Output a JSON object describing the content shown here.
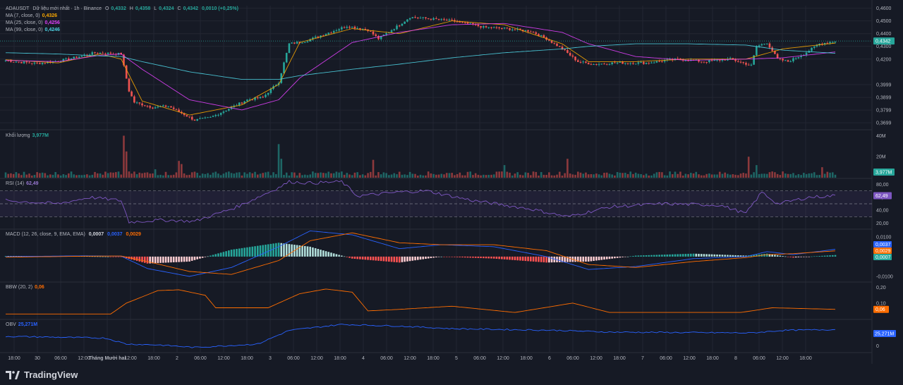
{
  "header": {
    "symbol": "ADAUSDT",
    "symbol_suffix": "Dữ liệu mới nhất · 1h · Binance",
    "o_label": "O",
    "o": "0,4332",
    "h_label": "H",
    "h": "0,4358",
    "l_label": "L",
    "l": "0,4324",
    "c_label": "C",
    "c": "0,4342",
    "change": "0,0010 (+0,25%)"
  },
  "ma": [
    {
      "label": "MA (7, close, 0)",
      "value": "0,4326",
      "color": "#f7a600"
    },
    {
      "label": "MA (25, close, 0)",
      "value": "0,4256",
      "color": "#e040fb"
    },
    {
      "label": "MA (99, close, 0)",
      "value": "0,4246",
      "color": "#4dd0e1"
    }
  ],
  "volume_label": "Khối lượng",
  "volume_value": "3,977M",
  "rsi_label": "RSI (14)",
  "rsi_value": "62,49",
  "macd_label": "MACD (12, 26, close, 9, EMA, EMA)",
  "macd_values": [
    "0,0007",
    "0,0037",
    "0,0029"
  ],
  "bbw_label": "BBW (20, 2)",
  "bbw_value": "0,06",
  "obv_label": "OBV",
  "obv_value": "25,271M",
  "price_axis": [
    "0,4600",
    "0,4500",
    "0,4400",
    "0,4300",
    "0,4200",
    "0,3999",
    "0,3899",
    "0,3799",
    "0,3699"
  ],
  "price_tag": "0,4342",
  "volume_axis": [
    "40M",
    "20M"
  ],
  "volume_tag": "3,977M",
  "rsi_axis": [
    "80,00",
    "60,00",
    "40,00",
    "20,00"
  ],
  "rsi_tag": "62,49",
  "macd_axis": [
    "0,0100",
    "-0,0100"
  ],
  "macd_tags": [
    "0,0037",
    "0,0029",
    "0,0007"
  ],
  "bbw_axis": [
    "0,20",
    "0,10"
  ],
  "bbw_tag": "0,06",
  "obv_axis": [
    "0"
  ],
  "obv_tag": "25,271M",
  "time_axis": [
    "18:00",
    "30",
    "06:00",
    "12:00",
    "Tháng Mười hai",
    "12:00",
    "18:00",
    "2",
    "06:00",
    "12:00",
    "18:00",
    "3",
    "06:00",
    "12:00",
    "18:00",
    "4",
    "06:00",
    "12:00",
    "18:00",
    "5",
    "06:00",
    "12:00",
    "18:00",
    "6",
    "06:00",
    "12:00",
    "18:00",
    "7",
    "06:00",
    "12:00",
    "18:00",
    "8",
    "06:00",
    "12:00",
    "18:00"
  ],
  "brand": "TradingView",
  "colors": {
    "up": "#26a69a",
    "down": "#ef5350",
    "rsi": "#7e57c2",
    "macd": "#2962ff",
    "signal": "#ff6d00",
    "bbw": "#ff6d00",
    "obv": "#2962ff"
  },
  "chart_data": {
    "type": "candlestick",
    "timeframe": "1h",
    "ylim": [
      0.365,
      0.462
    ],
    "ma_keys": [
      {
        "t": 0,
        "ma7": 0.4195,
        "ma25": 0.419,
        "ma99": 0.425
      },
      {
        "t": 20,
        "ma7": 0.417,
        "ma25": 0.418,
        "ma99": 0.424
      },
      {
        "t": 36,
        "ma7": 0.424,
        "ma25": 0.423,
        "ma99": 0.4225
      },
      {
        "t": 44,
        "ma7": 0.42,
        "ma25": 0.424,
        "ma99": 0.422
      },
      {
        "t": 52,
        "ma7": 0.387,
        "ma25": 0.412,
        "ma99": 0.418
      },
      {
        "t": 70,
        "ma7": 0.376,
        "ma25": 0.388,
        "ma99": 0.41
      },
      {
        "t": 90,
        "ma7": 0.384,
        "ma25": 0.38,
        "ma99": 0.404
      },
      {
        "t": 104,
        "ma7": 0.4,
        "ma25": 0.388,
        "ma99": 0.404
      },
      {
        "t": 112,
        "ma7": 0.433,
        "ma25": 0.405,
        "ma99": 0.407
      },
      {
        "t": 132,
        "ma7": 0.444,
        "ma25": 0.433,
        "ma99": 0.412
      },
      {
        "t": 150,
        "ma7": 0.44,
        "ma25": 0.441,
        "ma99": 0.416
      },
      {
        "t": 170,
        "ma7": 0.45,
        "ma25": 0.447,
        "ma99": 0.421
      },
      {
        "t": 190,
        "ma7": 0.447,
        "ma25": 0.448,
        "ma99": 0.425
      },
      {
        "t": 212,
        "ma7": 0.432,
        "ma25": 0.441,
        "ma99": 0.428
      },
      {
        "t": 222,
        "ma7": 0.418,
        "ma25": 0.432,
        "ma99": 0.43
      },
      {
        "t": 240,
        "ma7": 0.418,
        "ma25": 0.422,
        "ma99": 0.432
      },
      {
        "t": 260,
        "ma7": 0.42,
        "ma25": 0.419,
        "ma99": 0.432
      },
      {
        "t": 282,
        "ma7": 0.42,
        "ma25": 0.42,
        "ma99": 0.431
      },
      {
        "t": 296,
        "ma7": 0.428,
        "ma25": 0.421,
        "ma99": 0.427
      },
      {
        "t": 316,
        "ma7": 0.4326,
        "ma25": 0.4256,
        "ma99": 0.4246
      }
    ],
    "candles_ohlc": "generated_from_close_path",
    "close_path": [
      {
        "t": 0,
        "c": 0.419
      },
      {
        "t": 6,
        "c": 0.4175
      },
      {
        "t": 12,
        "c": 0.4165
      },
      {
        "t": 18,
        "c": 0.418
      },
      {
        "t": 24,
        "c": 0.42
      },
      {
        "t": 30,
        "c": 0.423
      },
      {
        "t": 34,
        "c": 0.425
      },
      {
        "t": 44,
        "c": 0.424
      },
      {
        "t": 47,
        "c": 0.395
      },
      {
        "t": 49,
        "c": 0.386
      },
      {
        "t": 56,
        "c": 0.382
      },
      {
        "t": 62,
        "c": 0.383
      },
      {
        "t": 72,
        "c": 0.372
      },
      {
        "t": 78,
        "c": 0.374
      },
      {
        "t": 84,
        "c": 0.38
      },
      {
        "t": 92,
        "c": 0.388
      },
      {
        "t": 98,
        "c": 0.39
      },
      {
        "t": 104,
        "c": 0.402
      },
      {
        "t": 108,
        "c": 0.432
      },
      {
        "t": 114,
        "c": 0.434
      },
      {
        "t": 122,
        "c": 0.44
      },
      {
        "t": 130,
        "c": 0.446
      },
      {
        "t": 138,
        "c": 0.443
      },
      {
        "t": 142,
        "c": 0.436
      },
      {
        "t": 150,
        "c": 0.447
      },
      {
        "t": 154,
        "c": 0.453
      },
      {
        "t": 160,
        "c": 0.452
      },
      {
        "t": 170,
        "c": 0.45
      },
      {
        "t": 178,
        "c": 0.447
      },
      {
        "t": 182,
        "c": 0.445
      },
      {
        "t": 190,
        "c": 0.444
      },
      {
        "t": 200,
        "c": 0.442
      },
      {
        "t": 206,
        "c": 0.436
      },
      {
        "t": 212,
        "c": 0.428
      },
      {
        "t": 218,
        "c": 0.418
      },
      {
        "t": 224,
        "c": 0.416
      },
      {
        "t": 232,
        "c": 0.417
      },
      {
        "t": 244,
        "c": 0.417
      },
      {
        "t": 256,
        "c": 0.42
      },
      {
        "t": 266,
        "c": 0.418
      },
      {
        "t": 276,
        "c": 0.42
      },
      {
        "t": 284,
        "c": 0.415
      },
      {
        "t": 286,
        "c": 0.43
      },
      {
        "t": 290,
        "c": 0.433
      },
      {
        "t": 294,
        "c": 0.42
      },
      {
        "t": 298,
        "c": 0.418
      },
      {
        "t": 304,
        "c": 0.424
      },
      {
        "t": 310,
        "c": 0.432
      },
      {
        "t": 316,
        "c": 0.4342
      }
    ],
    "volume_ylim": [
      0,
      45
    ],
    "volume_unit": "M",
    "volume_spikes": [
      {
        "t": 45,
        "v": 40
      },
      {
        "t": 46,
        "v": 25
      },
      {
        "t": 57,
        "v": 8
      },
      {
        "t": 66,
        "v": 16
      },
      {
        "t": 67,
        "v": 13
      },
      {
        "t": 104,
        "v": 32
      },
      {
        "t": 105,
        "v": 18
      },
      {
        "t": 140,
        "v": 17
      },
      {
        "t": 190,
        "v": 12
      },
      {
        "t": 214,
        "v": 18
      },
      {
        "t": 283,
        "v": 20
      },
      {
        "t": 286,
        "v": 12
      },
      {
        "t": 311,
        "v": 10
      }
    ],
    "rsi_ylim": [
      12,
      88
    ],
    "rsi_levels": [
      70,
      50,
      30
    ],
    "rsi_keys": [
      {
        "t": 0,
        "v": 55
      },
      {
        "t": 20,
        "v": 50
      },
      {
        "t": 32,
        "v": 60
      },
      {
        "t": 44,
        "v": 55
      },
      {
        "t": 47,
        "v": 22
      },
      {
        "t": 60,
        "v": 25
      },
      {
        "t": 72,
        "v": 23
      },
      {
        "t": 88,
        "v": 45
      },
      {
        "t": 104,
        "v": 75
      },
      {
        "t": 108,
        "v": 84
      },
      {
        "t": 116,
        "v": 82
      },
      {
        "t": 128,
        "v": 84
      },
      {
        "t": 134,
        "v": 62
      },
      {
        "t": 150,
        "v": 68
      },
      {
        "t": 160,
        "v": 70
      },
      {
        "t": 178,
        "v": 55
      },
      {
        "t": 200,
        "v": 42
      },
      {
        "t": 214,
        "v": 30
      },
      {
        "t": 230,
        "v": 45
      },
      {
        "t": 250,
        "v": 50
      },
      {
        "t": 272,
        "v": 48
      },
      {
        "t": 282,
        "v": 35
      },
      {
        "t": 288,
        "v": 68
      },
      {
        "t": 294,
        "v": 50
      },
      {
        "t": 306,
        "v": 60
      },
      {
        "t": 316,
        "v": 62.49
      }
    ],
    "macd_ylim": [
      -0.0125,
      0.0135
    ],
    "macd_keys": [
      {
        "t": 0,
        "m": 0.0,
        "s": -0.0003
      },
      {
        "t": 30,
        "m": 0.0004,
        "s": 0.0002
      },
      {
        "t": 44,
        "m": 0.0002,
        "s": 0.0003
      },
      {
        "t": 54,
        "m": -0.006,
        "s": -0.0025
      },
      {
        "t": 70,
        "m": -0.01,
        "s": -0.0075
      },
      {
        "t": 86,
        "m": -0.0055,
        "s": -0.009
      },
      {
        "t": 104,
        "m": 0.005,
        "s": -0.002
      },
      {
        "t": 116,
        "m": 0.013,
        "s": 0.008
      },
      {
        "t": 132,
        "m": 0.011,
        "s": 0.012
      },
      {
        "t": 150,
        "m": 0.004,
        "s": 0.007
      },
      {
        "t": 166,
        "m": 0.006,
        "s": 0.006
      },
      {
        "t": 186,
        "m": 0.005,
        "s": 0.006
      },
      {
        "t": 206,
        "m": 0.0,
        "s": 0.003
      },
      {
        "t": 222,
        "m": -0.0065,
        "s": -0.004
      },
      {
        "t": 240,
        "m": -0.005,
        "s": -0.0055
      },
      {
        "t": 262,
        "m": -0.001,
        "s": -0.0025
      },
      {
        "t": 282,
        "m": 0.0,
        "s": -0.0005
      },
      {
        "t": 290,
        "m": 0.0025,
        "s": 0.001
      },
      {
        "t": 300,
        "m": 0.001,
        "s": 0.0015
      },
      {
        "t": 316,
        "m": 0.0037,
        "s": 0.0029
      }
    ],
    "bbw_ylim": [
      0.0,
      0.23
    ],
    "bbw_keys": [
      {
        "t": 0,
        "v": 0.03
      },
      {
        "t": 40,
        "v": 0.03
      },
      {
        "t": 46,
        "v": 0.1
      },
      {
        "t": 58,
        "v": 0.18
      },
      {
        "t": 66,
        "v": 0.185
      },
      {
        "t": 76,
        "v": 0.15
      },
      {
        "t": 80,
        "v": 0.07
      },
      {
        "t": 100,
        "v": 0.07
      },
      {
        "t": 112,
        "v": 0.16
      },
      {
        "t": 122,
        "v": 0.19
      },
      {
        "t": 132,
        "v": 0.17
      },
      {
        "t": 138,
        "v": 0.05
      },
      {
        "t": 150,
        "v": 0.06
      },
      {
        "t": 170,
        "v": 0.08
      },
      {
        "t": 194,
        "v": 0.04
      },
      {
        "t": 216,
        "v": 0.1
      },
      {
        "t": 230,
        "v": 0.04
      },
      {
        "t": 280,
        "v": 0.04
      },
      {
        "t": 292,
        "v": 0.07
      },
      {
        "t": 316,
        "v": 0.06
      }
    ],
    "obv_keys": [
      {
        "t": 0,
        "v": 0.55
      },
      {
        "t": 38,
        "v": 0.45
      },
      {
        "t": 46,
        "v": 0.1
      },
      {
        "t": 58,
        "v": 0.05
      },
      {
        "t": 72,
        "v": -0.1
      },
      {
        "t": 96,
        "v": 0.1
      },
      {
        "t": 108,
        "v": 0.9
      },
      {
        "t": 128,
        "v": 1.25
      },
      {
        "t": 150,
        "v": 1.15
      },
      {
        "t": 170,
        "v": 1.0
      },
      {
        "t": 210,
        "v": 0.9
      },
      {
        "t": 230,
        "v": 0.8
      },
      {
        "t": 284,
        "v": 0.75
      },
      {
        "t": 296,
        "v": 0.9
      },
      {
        "t": 316,
        "v": 0.95
      }
    ]
  }
}
